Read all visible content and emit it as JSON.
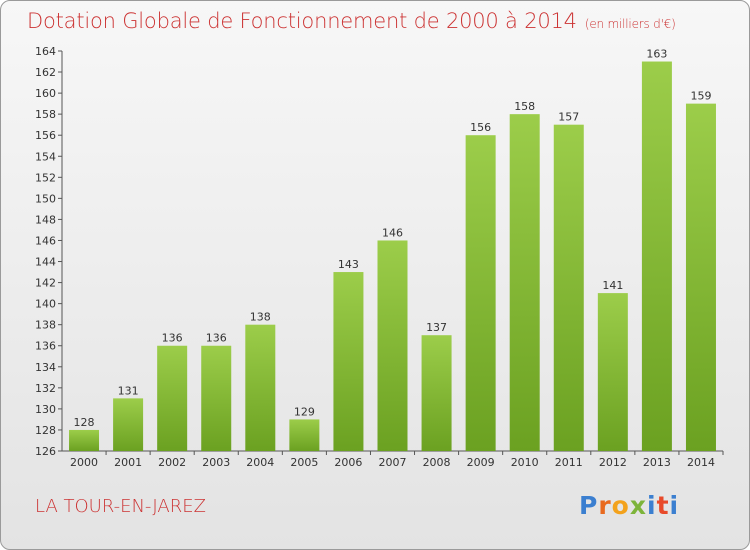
{
  "title": "Dotation Globale de Fonctionnement de 2000 à 2014",
  "unit": "(en milliers d'€)",
  "town": "LA TOUR-EN-JAREZ",
  "logo": {
    "letters": [
      "P",
      "r",
      "o",
      "x",
      "i",
      "t",
      "i"
    ]
  },
  "colors": {
    "bar_light": "#9ccd4a",
    "bar_dark": "#6ba121",
    "title": "#cc3333"
  },
  "chart_data": {
    "type": "bar",
    "title": "Dotation Globale de Fonctionnement de 2000 à 2014",
    "subtitle": "(en milliers d'€)",
    "xlabel": "",
    "ylabel": "",
    "categories": [
      "2000",
      "2001",
      "2002",
      "2003",
      "2004",
      "2005",
      "2006",
      "2007",
      "2008",
      "2009",
      "2010",
      "2011",
      "2012",
      "2013",
      "2014"
    ],
    "values": [
      128,
      131,
      136,
      136,
      138,
      129,
      143,
      146,
      137,
      156,
      158,
      157,
      141,
      163,
      159
    ],
    "ylim": [
      126,
      164
    ],
    "yticks": [
      126,
      128,
      130,
      132,
      134,
      136,
      138,
      140,
      142,
      144,
      146,
      148,
      150,
      152,
      154,
      156,
      158,
      160,
      162,
      164
    ],
    "grid": false,
    "legend": "none"
  }
}
